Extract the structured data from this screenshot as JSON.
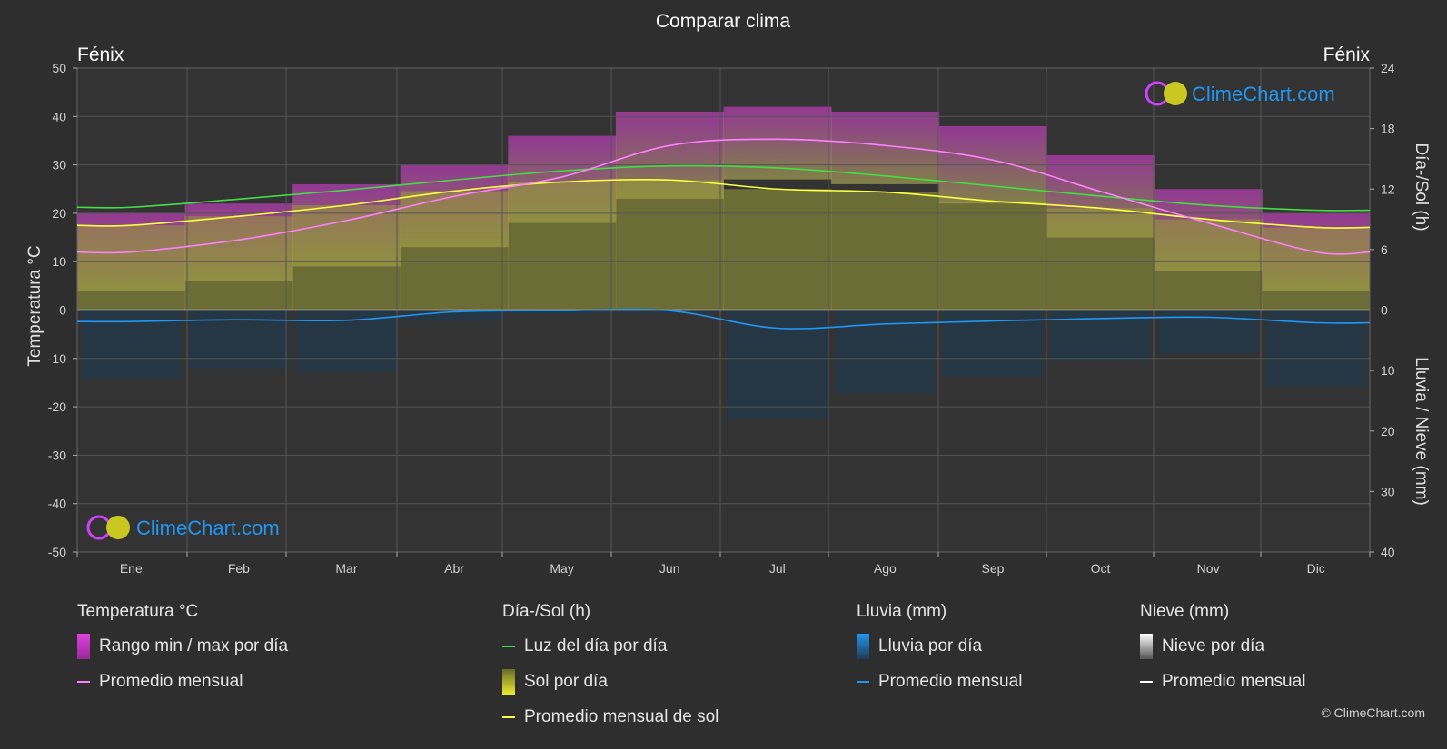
{
  "title": "Comparar clima",
  "location_left": "Fénix",
  "location_right": "Fénix",
  "axis_left_label": "Temperatura °C",
  "axis_right_top_label": "Día-/Sol (h)",
  "axis_right_bottom_label": "Lluvia / Nieve (mm)",
  "logo_text": "ClimeChart.com",
  "copyright": "© ClimeChart.com",
  "colors": {
    "background": "#2e2e2e",
    "temp_range": "#e040e0",
    "temp_avg": "#ff80ff",
    "daylight": "#44dd44",
    "sunshine_fill": "#a8a832",
    "sunshine_avg": "#ffff44",
    "rain": "#2196f3",
    "snow": "#ffffff"
  },
  "legend": {
    "temperature": {
      "title": "Temperatura °C",
      "range_label": "Rango min / max por día",
      "avg_label": "Promedio mensual"
    },
    "sun": {
      "title": "Día-/Sol (h)",
      "daylight_label": "Luz del día por día",
      "sunshine_label": "Sol por día",
      "sunshine_avg_label": "Promedio mensual de sol"
    },
    "rain": {
      "title": "Lluvia (mm)",
      "rain_label": "Lluvia por día",
      "avg_label": "Promedio mensual"
    },
    "snow": {
      "title": "Nieve (mm)",
      "snow_label": "Nieve por día",
      "avg_label": "Promedio mensual"
    }
  },
  "chart_data": {
    "type": "area",
    "title": "Comparar clima",
    "categories": [
      "Ene",
      "Feb",
      "Mar",
      "Abr",
      "May",
      "Jun",
      "Jul",
      "Ago",
      "Sep",
      "Oct",
      "Nov",
      "Dic"
    ],
    "y_left": {
      "label": "Temperatura °C",
      "lim": [
        -50,
        50
      ],
      "ticks": [
        50,
        40,
        30,
        20,
        10,
        0,
        -10,
        -20,
        -30,
        -40,
        -50
      ]
    },
    "y_right_top": {
      "label": "Día-/Sol (h)",
      "lim": [
        0,
        24
      ],
      "ticks": [
        24,
        18,
        12,
        6,
        0
      ]
    },
    "y_right_bottom": {
      "label": "Lluvia / Nieve (mm)",
      "lim": [
        0,
        40
      ],
      "ticks": [
        0,
        10,
        20,
        30,
        40
      ]
    },
    "grid": true,
    "series": [
      {
        "name": "Promedio mensual",
        "unit": "°C",
        "values": [
          12,
          14.5,
          18.5,
          23.5,
          27.5,
          34,
          35.3,
          34,
          31,
          24.5,
          18,
          12
        ]
      },
      {
        "name": "Rango min / max por día",
        "unit": "°C",
        "min": [
          4,
          6,
          9,
          13,
          18,
          23,
          27,
          26,
          22,
          15,
          8,
          4
        ],
        "max": [
          20,
          22,
          26,
          30,
          36,
          41,
          42,
          41,
          38,
          32,
          25,
          20
        ]
      },
      {
        "name": "Luz del día por día",
        "unit": "h",
        "values": [
          10.2,
          11.0,
          11.9,
          12.9,
          13.8,
          14.3,
          14.1,
          13.3,
          12.3,
          11.3,
          10.4,
          9.9
        ]
      },
      {
        "name": "Promedio mensual de sol",
        "unit": "h",
        "values": [
          8.4,
          9.3,
          10.4,
          11.8,
          12.7,
          12.9,
          12.0,
          11.7,
          10.8,
          10.1,
          9.0,
          8.2
        ]
      },
      {
        "name": "Lluvia promedio mensual",
        "unit": "mm",
        "values": [
          1.9,
          1.6,
          1.7,
          0.3,
          0.1,
          0.1,
          3.0,
          2.3,
          1.8,
          1.4,
          1.2,
          2.1
        ]
      }
    ]
  }
}
